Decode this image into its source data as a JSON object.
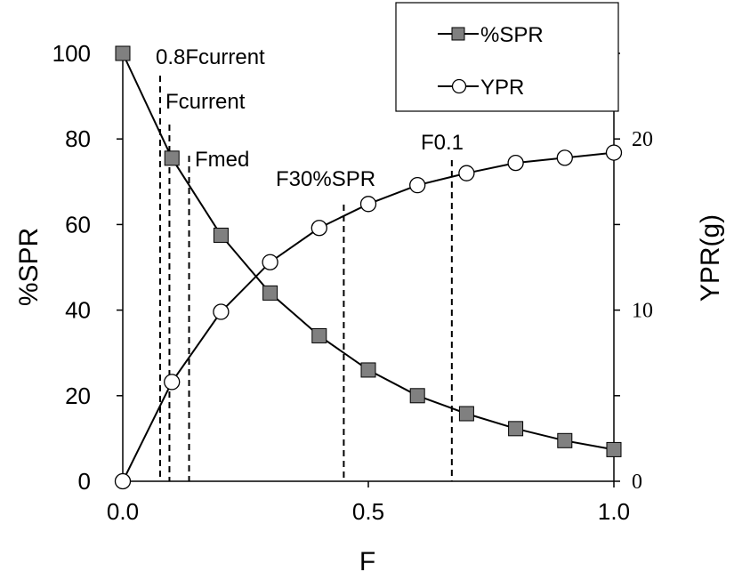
{
  "chart_data": {
    "type": "line",
    "xlabel": "F",
    "ylabel_left": "%SPR",
    "ylabel_right": "YPR(g)",
    "xlim": [
      0,
      1
    ],
    "ylim_left": [
      0,
      100
    ],
    "ylim_right": [
      0,
      25
    ],
    "x_ticks": [
      "0.0",
      "0.5",
      "1.0"
    ],
    "y_left_ticks": [
      "0",
      "20",
      "40",
      "60",
      "80",
      "100"
    ],
    "y_right_ticks": [
      "0",
      "10",
      "20"
    ],
    "grid": false,
    "legend_position": "top-right",
    "series": [
      {
        "name": "%SPR",
        "axis": "left",
        "marker": "square",
        "color": "#808080",
        "x": [
          0.0,
          0.1,
          0.2,
          0.3,
          0.4,
          0.5,
          0.6,
          0.7,
          0.8,
          0.9,
          1.0
        ],
        "y": [
          100,
          75.5,
          57.5,
          44,
          34,
          26,
          20,
          15.8,
          12.3,
          9.5,
          7.4
        ]
      },
      {
        "name": "YPR",
        "axis": "right",
        "marker": "circle",
        "color": "#ffffff",
        "x": [
          0.0,
          0.1,
          0.2,
          0.3,
          0.4,
          0.5,
          0.6,
          0.7,
          0.8,
          0.9,
          1.0
        ],
        "y": [
          0,
          5.8,
          9.9,
          12.8,
          14.8,
          16.2,
          17.3,
          18.0,
          18.6,
          18.9,
          19.2
        ]
      }
    ],
    "reference_lines": [
      {
        "label": "0.8Fcurrent",
        "x": 0.076
      },
      {
        "label": "Fcurrent",
        "x": 0.095
      },
      {
        "label": "Fmed",
        "x": 0.135
      },
      {
        "label": "F30%SPR",
        "x": 0.45
      },
      {
        "label": "F0.1",
        "x": 0.67
      }
    ]
  }
}
